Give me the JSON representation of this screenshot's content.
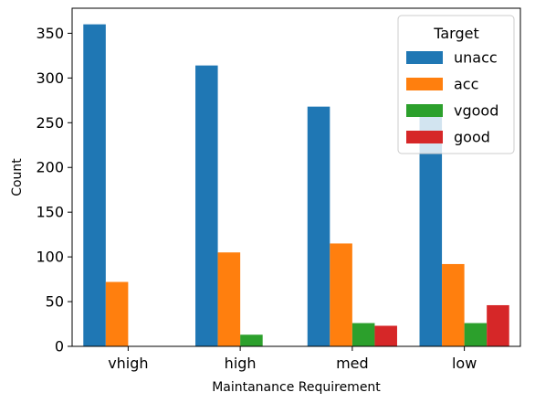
{
  "chart_data": {
    "type": "bar",
    "title": "",
    "xlabel": "Maintanance Requirement",
    "ylabel": "Count",
    "categories": [
      "vhigh",
      "high",
      "med",
      "low"
    ],
    "series": [
      {
        "name": "unacc",
        "color": "#1f77b4",
        "values": [
          360,
          314,
          268,
          268
        ]
      },
      {
        "name": "acc",
        "color": "#ff7f0e",
        "values": [
          72,
          105,
          115,
          92
        ]
      },
      {
        "name": "vgood",
        "color": "#2ca02c",
        "values": [
          0,
          13,
          26,
          26
        ]
      },
      {
        "name": "good",
        "color": "#d62728",
        "values": [
          0,
          0,
          23,
          46
        ]
      }
    ],
    "ylim": [
      0,
      378
    ],
    "yticks": [
      0,
      50,
      100,
      150,
      200,
      250,
      300,
      350
    ],
    "grid": false,
    "legend": {
      "title": "Target",
      "placement": "top-right"
    }
  }
}
